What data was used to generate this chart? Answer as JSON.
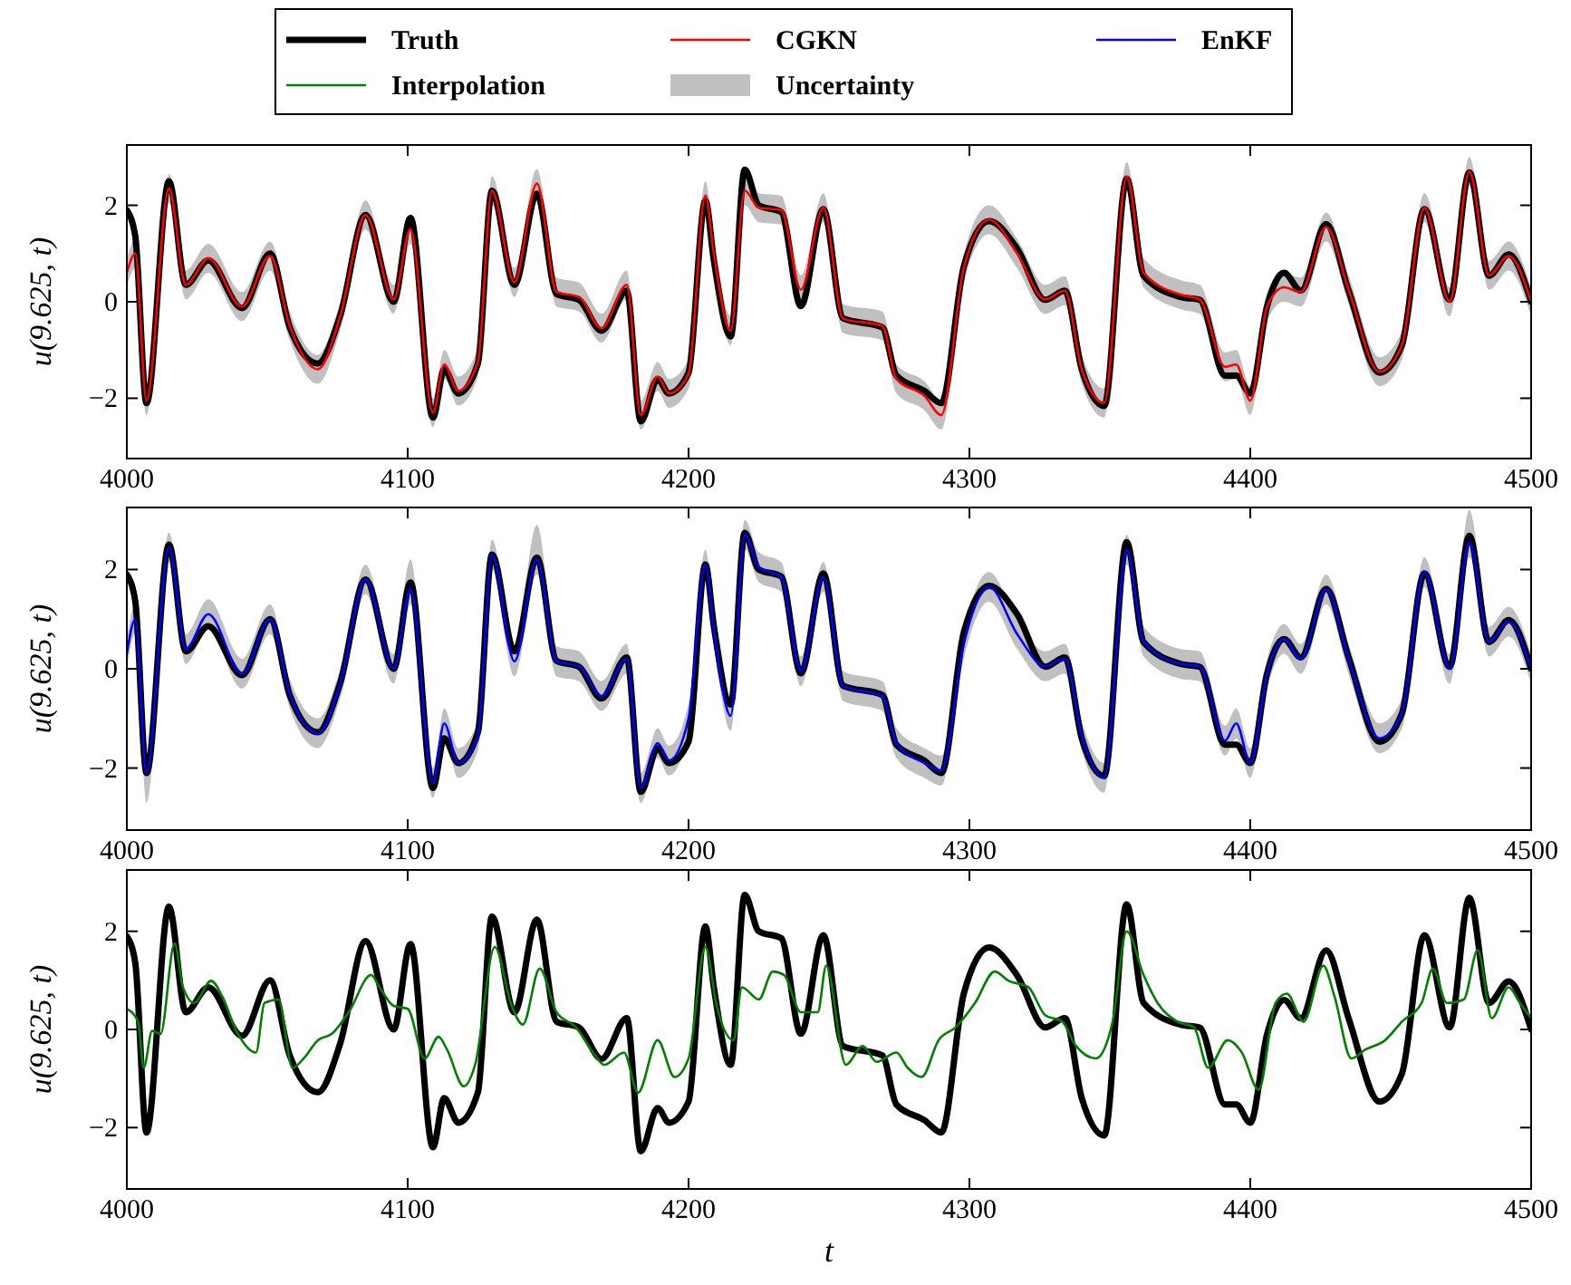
{
  "chart_data": [
    {
      "type": "line",
      "ylabel": "u(9.625, t)",
      "xlim": [
        4000,
        4500
      ],
      "xticks": [
        4000,
        4100,
        4200,
        4300,
        4400,
        4500
      ],
      "ylim": [
        -3.25,
        3.25
      ],
      "yticks": [
        -2,
        0,
        2
      ],
      "legend": "top",
      "annotations": [
        "Uncertainty"
      ],
      "x": [
        4000,
        4003,
        4007,
        4015,
        4021,
        4029,
        4041,
        4051,
        4058,
        4068,
        4076,
        4085,
        4095,
        4101,
        4109,
        4113,
        4118,
        4125,
        4130,
        4138,
        4146,
        4153,
        4161,
        4169,
        4178,
        4183,
        4189,
        4193,
        4200,
        4206,
        4209,
        4215,
        4220,
        4225,
        4233,
        4240,
        4248,
        4255,
        4269,
        4274,
        4284,
        4290,
        4298,
        4307,
        4317,
        4327,
        4334,
        4340,
        4348,
        4356,
        4362,
        4375,
        4382,
        4391,
        4395,
        4400,
        4406,
        4412,
        4418,
        4427,
        4435,
        4446,
        4454,
        4462,
        4471,
        4478,
        4485,
        4492,
        4500
      ],
      "series": [
        {
          "name": "Truth",
          "color": "#000000",
          "values": [
            1.9,
            1.36,
            -2.1,
            2.5,
            0.35,
            0.86,
            -0.13,
            1.0,
            -0.53,
            -1.28,
            -0.28,
            1.8,
            0,
            1.74,
            -2.4,
            -1.4,
            -1.9,
            -1.28,
            2.3,
            0.35,
            2.24,
            0.16,
            0.04,
            -0.6,
            0.23,
            -2.48,
            -1.6,
            -1.9,
            -1.47,
            2.1,
            0.86,
            -0.72,
            2.74,
            2.0,
            1.86,
            -0.09,
            1.92,
            -0.34,
            -0.53,
            -1.53,
            -1.85,
            -2.1,
            0.73,
            1.67,
            1.1,
            0.04,
            0.23,
            -1.4,
            -2.16,
            2.55,
            0.54,
            0.1,
            0.04,
            -1.53,
            -1.53,
            -1.9,
            -0.09,
            0.6,
            0.23,
            1.61,
            0.23,
            -1.47,
            -0.9,
            1.92,
            0.04,
            2.68,
            0.54,
            0.98,
            0
          ]
        },
        {
          "name": "CGKN",
          "color": "#ff0000",
          "values": [
            0.6,
            1.0,
            -2.05,
            2.35,
            0.35,
            0.9,
            -0.1,
            0.95,
            -0.5,
            -1.4,
            -0.3,
            1.8,
            0.05,
            1.5,
            -2.3,
            -1.3,
            -1.85,
            -1.25,
            2.3,
            0.4,
            2.45,
            0.2,
            0.1,
            -0.55,
            0.35,
            -2.35,
            -1.55,
            -1.9,
            -1.5,
            2.2,
            1.0,
            -0.6,
            2.3,
            1.95,
            1.9,
            0.25,
            1.95,
            -0.35,
            -0.5,
            -1.6,
            -1.95,
            -2.35,
            0.7,
            1.7,
            1.0,
            0.05,
            0.23,
            -1.4,
            -2.1,
            2.6,
            0.6,
            0.15,
            0.05,
            -1.35,
            -1.3,
            -2.05,
            -0.1,
            0.3,
            0.2,
            1.55,
            0.25,
            -1.45,
            -0.9,
            1.95,
            0.0,
            2.7,
            0.55,
            0.95,
            0.0
          ],
          "lower": [
            0.3,
            0.7,
            -2.35,
            2.05,
            0.05,
            0.6,
            -0.4,
            0.65,
            -0.8,
            -1.7,
            -0.6,
            1.5,
            -0.25,
            1.2,
            -2.6,
            -1.6,
            -2.15,
            -1.55,
            2.0,
            0.1,
            2.15,
            -0.1,
            -0.2,
            -0.85,
            0.05,
            -2.65,
            -1.85,
            -2.2,
            -1.8,
            1.9,
            0.7,
            -0.9,
            2.0,
            1.65,
            1.6,
            -0.05,
            1.65,
            -0.65,
            -0.8,
            -1.9,
            -2.25,
            -2.65,
            0.4,
            1.4,
            0.7,
            -0.25,
            -0.07,
            -1.7,
            -2.4,
            2.3,
            0.3,
            -0.15,
            -0.25,
            -1.65,
            -1.6,
            -2.35,
            -0.4,
            0.0,
            -0.1,
            1.25,
            -0.05,
            -1.75,
            -1.2,
            1.65,
            -0.3,
            2.4,
            0.25,
            0.65,
            -0.3
          ],
          "upper": [
            0.9,
            1.3,
            -1.75,
            2.65,
            0.65,
            1.2,
            0.2,
            1.25,
            -0.2,
            -1.1,
            0.0,
            2.1,
            0.35,
            1.8,
            -2.0,
            -1.0,
            -1.55,
            -0.95,
            2.6,
            0.7,
            2.75,
            0.5,
            0.4,
            -0.25,
            0.65,
            -2.05,
            -1.25,
            -1.6,
            -1.2,
            2.5,
            1.3,
            -0.3,
            2.6,
            2.25,
            2.2,
            0.55,
            2.25,
            -0.05,
            -0.2,
            -1.3,
            -1.65,
            -2.05,
            1.0,
            2.0,
            1.3,
            0.35,
            0.53,
            -1.1,
            -1.8,
            2.9,
            0.9,
            0.45,
            0.35,
            -1.05,
            -1.0,
            -1.75,
            0.2,
            0.6,
            0.5,
            1.85,
            0.55,
            -1.15,
            -0.6,
            2.25,
            0.3,
            3.0,
            0.85,
            1.25,
            0.3
          ]
        }
      ]
    },
    {
      "type": "line",
      "ylabel": "u(9.625, t)",
      "xlim": [
        4000,
        4500
      ],
      "xticks": [
        4000,
        4100,
        4200,
        4300,
        4400,
        4500
      ],
      "ylim": [
        -3.25,
        3.25
      ],
      "yticks": [
        -2,
        0,
        2
      ],
      "x": [
        4000,
        4003,
        4007,
        4015,
        4021,
        4029,
        4041,
        4051,
        4058,
        4068,
        4076,
        4085,
        4095,
        4101,
        4109,
        4113,
        4118,
        4125,
        4130,
        4138,
        4146,
        4153,
        4161,
        4169,
        4178,
        4183,
        4189,
        4193,
        4200,
        4206,
        4209,
        4215,
        4220,
        4225,
        4233,
        4240,
        4248,
        4255,
        4269,
        4274,
        4284,
        4290,
        4298,
        4307,
        4317,
        4327,
        4334,
        4340,
        4348,
        4356,
        4362,
        4375,
        4382,
        4391,
        4395,
        4400,
        4406,
        4412,
        4418,
        4427,
        4435,
        4446,
        4454,
        4462,
        4471,
        4478,
        4485,
        4492,
        4500
      ],
      "series": [
        {
          "color": "#000000",
          "values": [
            1.9,
            1.36,
            -2.1,
            2.5,
            0.35,
            0.86,
            -0.13,
            1.0,
            -0.53,
            -1.28,
            -0.28,
            1.8,
            0,
            1.74,
            -2.4,
            -1.4,
            -1.9,
            -1.28,
            2.3,
            0.35,
            2.24,
            0.16,
            0.04,
            -0.6,
            0.23,
            -2.48,
            -1.6,
            -1.9,
            -1.47,
            2.1,
            0.86,
            -0.72,
            2.74,
            2.0,
            1.86,
            -0.09,
            1.92,
            -0.34,
            -0.53,
            -1.53,
            -1.85,
            -2.1,
            0.73,
            1.67,
            1.1,
            0.04,
            0.23,
            -1.4,
            -2.16,
            2.55,
            0.54,
            0.1,
            0.04,
            -1.53,
            -1.53,
            -1.9,
            -0.09,
            0.6,
            0.23,
            1.61,
            0.23,
            -1.47,
            -0.9,
            1.92,
            0.04,
            2.68,
            0.54,
            0.98,
            0
          ]
        },
        {
          "name": "EnKF",
          "color": "#0000ff",
          "values": [
            0.3,
            1.0,
            -2.1,
            2.45,
            0.4,
            1.1,
            -0.1,
            1.0,
            -0.5,
            -1.3,
            -0.3,
            1.8,
            0.0,
            1.6,
            -2.3,
            -1.1,
            -1.9,
            -1.35,
            2.3,
            0.15,
            2.2,
            0.15,
            0.05,
            -0.55,
            0.2,
            -2.4,
            -1.5,
            -1.85,
            -1.0,
            2.1,
            0.8,
            -0.95,
            2.7,
            2.05,
            1.85,
            -0.05,
            1.85,
            -0.35,
            -0.55,
            -1.5,
            -1.9,
            -2.05,
            0.5,
            1.65,
            0.7,
            0.05,
            0.2,
            -1.35,
            -2.2,
            2.4,
            0.55,
            0.1,
            0.05,
            -1.45,
            -1.1,
            -1.9,
            -0.1,
            0.6,
            0.2,
            1.6,
            0.2,
            -1.4,
            -0.9,
            1.95,
            0.0,
            2.55,
            0.55,
            0.95,
            0.0
          ],
          "lower": [
            0.0,
            0.7,
            -2.7,
            2.15,
            0.1,
            0.8,
            -0.4,
            0.7,
            -0.8,
            -1.6,
            -0.6,
            1.5,
            -0.3,
            1.3,
            -2.6,
            -1.4,
            -2.2,
            -1.65,
            2.0,
            -0.15,
            1.9,
            -0.15,
            -0.25,
            -0.85,
            -0.1,
            -2.7,
            -1.8,
            -2.15,
            -1.3,
            1.8,
            0.5,
            -1.25,
            2.4,
            1.75,
            1.55,
            -0.35,
            1.55,
            -0.65,
            -0.85,
            -1.8,
            -2.2,
            -2.35,
            0.2,
            1.35,
            0.4,
            -0.25,
            -0.1,
            -1.65,
            -2.5,
            2.1,
            0.25,
            -0.2,
            -0.25,
            -1.75,
            -1.4,
            -2.2,
            -0.4,
            0.3,
            -0.1,
            1.3,
            -0.1,
            -1.7,
            -1.2,
            1.65,
            -0.3,
            2.25,
            0.25,
            0.65,
            -0.3
          ],
          "upper": [
            0.6,
            1.3,
            -1.8,
            2.75,
            0.7,
            1.4,
            0.2,
            1.3,
            -0.2,
            -1.0,
            0.0,
            2.1,
            0.3,
            2.2,
            -2.0,
            -0.8,
            -1.6,
            -1.05,
            2.6,
            0.45,
            2.9,
            0.45,
            0.35,
            -0.25,
            0.5,
            -2.1,
            -1.2,
            -1.55,
            -0.7,
            2.4,
            1.1,
            -0.65,
            3.0,
            2.35,
            2.15,
            0.25,
            2.15,
            -0.05,
            -0.25,
            -1.2,
            -1.6,
            -1.75,
            0.8,
            1.95,
            1.0,
            0.35,
            0.5,
            -1.05,
            -1.9,
            2.7,
            0.85,
            0.4,
            0.35,
            -1.15,
            -0.8,
            -1.6,
            0.2,
            0.9,
            0.5,
            1.9,
            0.5,
            -1.1,
            -0.6,
            2.25,
            0.3,
            3.2,
            0.85,
            1.25,
            0.3
          ]
        }
      ]
    },
    {
      "type": "line",
      "ylabel": "u(9.625, t)",
      "xlabel": "t",
      "xlim": [
        4000,
        4500
      ],
      "xticks": [
        4000,
        4100,
        4200,
        4300,
        4400,
        4500
      ],
      "ylim": [
        -3.25,
        3.25
      ],
      "yticks": [
        -2,
        0,
        2
      ],
      "x": [
        4000,
        4003,
        4007,
        4015,
        4021,
        4029,
        4041,
        4051,
        4058,
        4068,
        4076,
        4085,
        4095,
        4101,
        4109,
        4113,
        4118,
        4125,
        4130,
        4138,
        4146,
        4153,
        4161,
        4169,
        4178,
        4183,
        4189,
        4193,
        4200,
        4206,
        4209,
        4215,
        4220,
        4225,
        4233,
        4240,
        4248,
        4255,
        4269,
        4274,
        4284,
        4290,
        4298,
        4307,
        4317,
        4327,
        4334,
        4340,
        4348,
        4356,
        4362,
        4375,
        4382,
        4391,
        4395,
        4400,
        4406,
        4412,
        4418,
        4427,
        4435,
        4446,
        4454,
        4462,
        4471,
        4478,
        4485,
        4492,
        4500
      ],
      "series": [
        {
          "color": "#000000",
          "values": [
            1.9,
            1.36,
            -2.1,
            2.5,
            0.35,
            0.86,
            -0.13,
            1.0,
            -0.53,
            -1.28,
            -0.28,
            1.8,
            0,
            1.74,
            -2.4,
            -1.4,
            -1.9,
            -1.28,
            2.3,
            0.35,
            2.24,
            0.16,
            0.04,
            -0.6,
            0.23,
            -2.48,
            -1.6,
            -1.9,
            -1.47,
            2.1,
            0.86,
            -0.72,
            2.74,
            2.0,
            1.86,
            -0.09,
            1.92,
            -0.34,
            -0.53,
            -1.53,
            -1.85,
            -2.1,
            0.73,
            1.67,
            1.1,
            0.04,
            0.23,
            -1.4,
            -2.16,
            2.55,
            0.54,
            0.1,
            0.04,
            -1.53,
            -1.53,
            -1.9,
            -0.09,
            0.6,
            0.23,
            1.61,
            0.23,
            -1.47,
            -0.9,
            1.92,
            0.04,
            2.68,
            0.54,
            0.98,
            0
          ]
        },
        {
          "name": "Interpolation",
          "color": "#008000",
          "x": [
            4000,
            4004,
            4006,
            4009,
            4012,
            4017,
            4020,
            4024,
            4030,
            4034,
            4039,
            4046,
            4049,
            4054,
            4059,
            4063,
            4068,
            4073,
            4079,
            4087,
            4090,
            4095,
            4100,
            4106,
            4111,
            4114,
            4120,
            4124,
            4131,
            4137,
            4141,
            4147,
            4153,
            4160,
            4166,
            4170,
            4177,
            4182,
            4189,
            4195,
            4200,
            4206,
            4210,
            4216,
            4219,
            4225,
            4230,
            4234,
            4240,
            4246,
            4249,
            4256,
            4262,
            4267,
            4274,
            4278,
            4283,
            4289,
            4295,
            4302,
            4309,
            4314,
            4321,
            4327,
            4333,
            4338,
            4345,
            4351,
            4356,
            4362,
            4367,
            4374,
            4380,
            4385,
            4392,
            4397,
            4403,
            4409,
            4413,
            4419,
            4426,
            4430,
            4436,
            4441,
            4448,
            4454,
            4461,
            4465,
            4470,
            4476,
            4481,
            4486,
            4492,
            4496,
            4500
          ],
          "values": [
            0.42,
            0.16,
            -0.78,
            -0.03,
            -0.09,
            1.75,
            0.86,
            0.54,
            0.99,
            0.67,
            -0.03,
            -0.47,
            0.54,
            0.61,
            -0.78,
            -0.59,
            -0.22,
            -0.09,
            0.35,
            1.11,
            0.86,
            0.48,
            0.42,
            -0.59,
            -0.15,
            -0.41,
            -1.16,
            -0.72,
            1.68,
            0.48,
            0.1,
            1.24,
            0.35,
            0.04,
            -0.47,
            -0.72,
            -0.47,
            -1.29,
            -0.22,
            -0.97,
            -0.59,
            1.68,
            0.48,
            -0.22,
            0.86,
            0.61,
            1.18,
            1.11,
            0.35,
            0.35,
            1.3,
            -0.72,
            -0.34,
            -0.66,
            -0.47,
            -0.78,
            -0.97,
            -0.22,
            0.04,
            0.54,
            1.18,
            0.99,
            0.86,
            0.29,
            0.16,
            -0.34,
            -0.59,
            0.16,
            2.0,
            1.11,
            0.54,
            0.16,
            0.04,
            -0.78,
            -0.22,
            -0.47,
            -1.23,
            0.54,
            0.73,
            0.16,
            1.3,
            0.67,
            -0.59,
            -0.41,
            -0.22,
            0.16,
            0.54,
            1.24,
            0.54,
            0.61,
            1.62,
            0.23,
            0.86,
            0.54,
            0.23
          ]
        }
      ]
    }
  ]
}
